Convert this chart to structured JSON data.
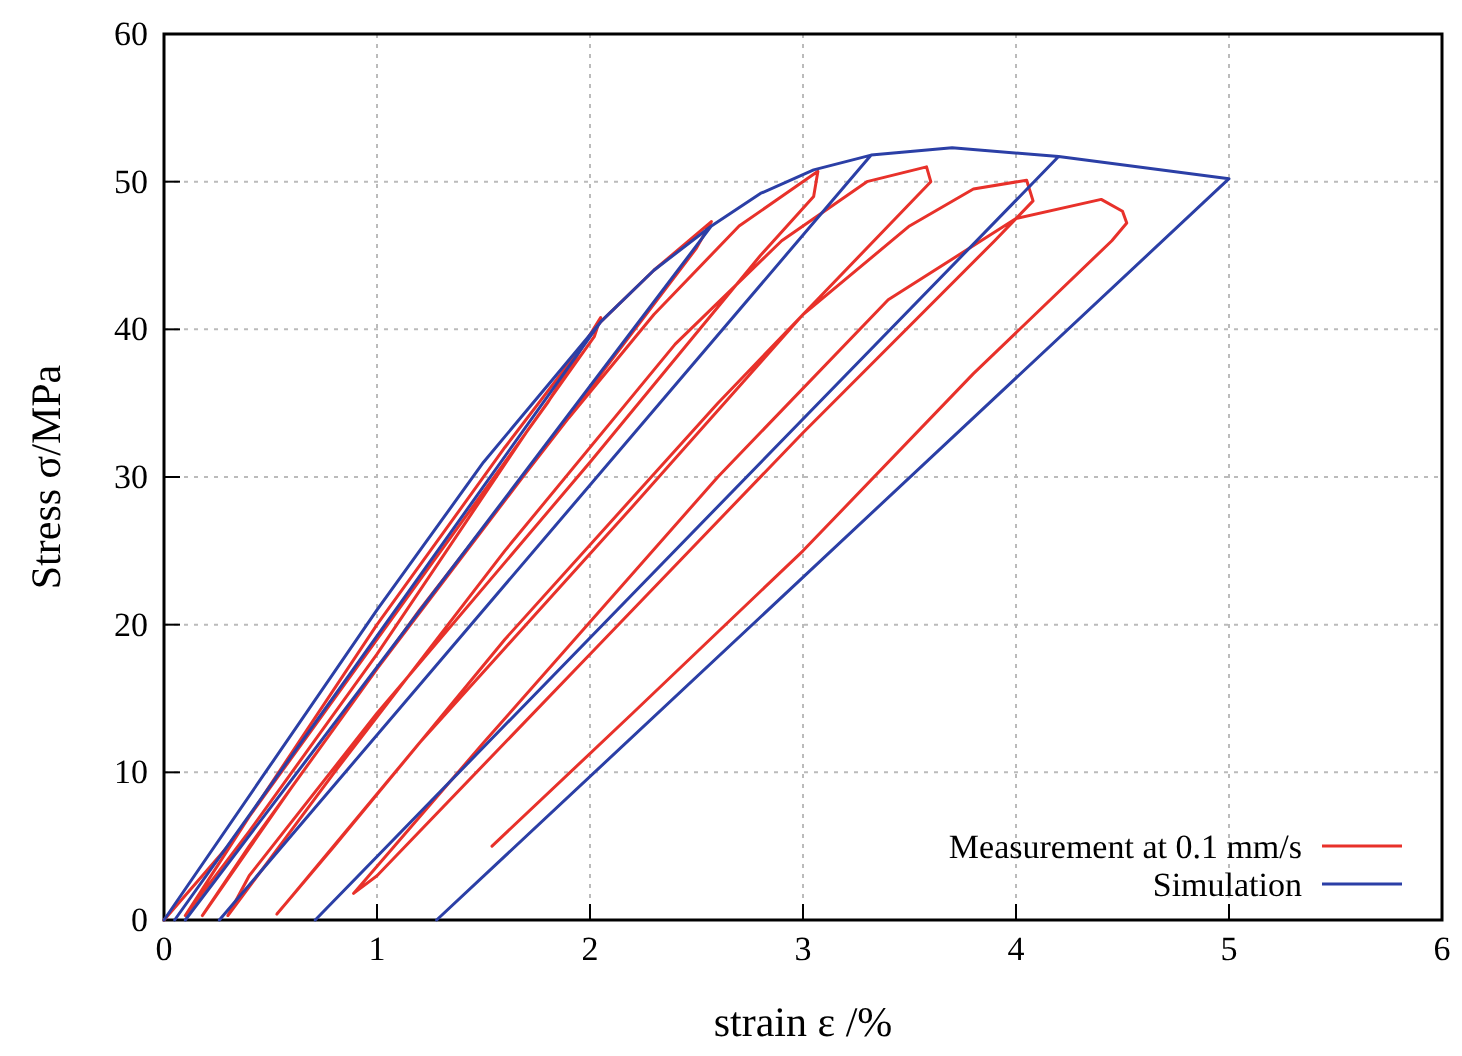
{
  "chart_data": {
    "type": "line",
    "xlabel": "strain ε /%",
    "ylabel": "Stress σ/MPa",
    "xlim": [
      0,
      6
    ],
    "ylim": [
      0,
      60
    ],
    "xticks": [
      0,
      1,
      2,
      3,
      4,
      5,
      6
    ],
    "yticks": [
      0,
      10,
      20,
      30,
      40,
      50,
      60
    ],
    "grid": true,
    "legend": "bottom right",
    "line_style": "solid",
    "marker": "none",
    "series": [
      {
        "name": "Measurement at 0.1 mm/s",
        "color": "#e8312a",
        "x": [
          0,
          0.3,
          0.7,
          1.0,
          1.4,
          1.8,
          2.05,
          2.02,
          1.7,
          1.0,
          0.4,
          0.1,
          0.4,
          1.0,
          1.6,
          2.05,
          2.3,
          2.57,
          2.5,
          2.0,
          1.0,
          0.4,
          0.18,
          0.6,
          1.2,
          1.9,
          2.3,
          2.7,
          3.07,
          3.05,
          2.8,
          2.0,
          1.0,
          0.4,
          0.3,
          0.8,
          1.6,
          2.4,
          2.9,
          3.3,
          3.58,
          3.6,
          3.4,
          2.6,
          1.6,
          0.8,
          0.53,
          1.2,
          2.2,
          3.0,
          3.5,
          3.8,
          4.05,
          4.08,
          3.9,
          3.0,
          2.0,
          1.0,
          0.89,
          1.5,
          2.6,
          3.4,
          4.0,
          4.4,
          4.5,
          4.52,
          4.45,
          3.8,
          3.0,
          2.2,
          1.54
        ],
        "values": [
          0,
          5,
          13,
          19,
          27,
          35,
          40.8,
          39.5,
          33,
          18,
          6,
          0.3,
          7,
          20,
          32,
          40.5,
          44,
          47.3,
          45.5,
          36,
          17,
          5,
          0.3,
          9,
          21,
          34,
          41,
          47,
          50.7,
          49,
          45,
          31,
          14,
          3,
          0.3,
          10,
          25,
          39,
          46,
          50,
          51,
          50,
          47,
          35,
          19,
          5,
          0.4,
          12,
          28,
          41,
          47,
          49.5,
          50.1,
          48.7,
          46,
          33,
          18,
          3,
          1.8,
          12,
          30,
          42,
          47.5,
          48.8,
          48,
          47.2,
          46,
          37,
          25,
          14,
          5
        ]
      },
      {
        "name": "Simulation",
        "color": "#2b3fa6",
        "x": [
          0,
          0.5,
          1.0,
          1.5,
          2.05,
          0.05,
          2.05,
          2.3,
          2.57,
          0.1,
          2.57,
          2.8,
          3.05,
          3.32,
          0.26,
          3.32,
          3.7,
          4.2,
          0.71,
          4.2,
          5,
          1.28
        ],
        "values": [
          0,
          10.5,
          21,
          31,
          40.5,
          0,
          40.5,
          44,
          47,
          0,
          47,
          49.2,
          50.8,
          51.8,
          0,
          51.8,
          52.3,
          51.7,
          0,
          51.7,
          50.2,
          0
        ]
      }
    ]
  }
}
